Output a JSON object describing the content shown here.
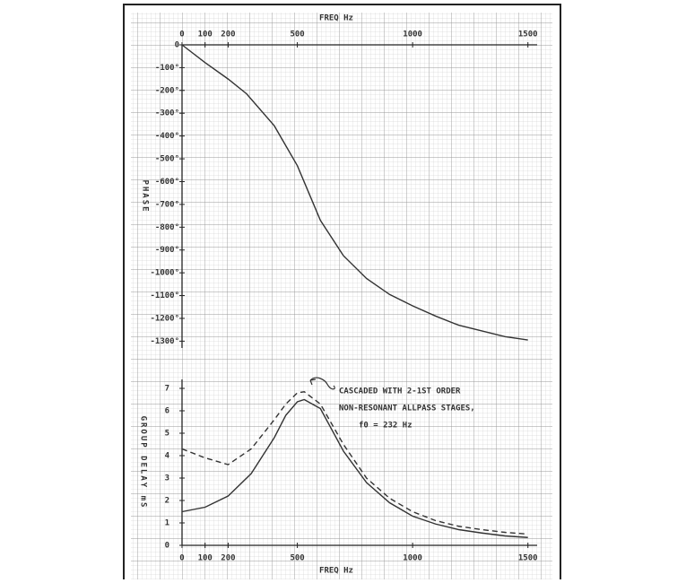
{
  "chart_data": [
    {
      "type": "line",
      "xlabel": "FREQ Hz",
      "ylabel": "PHASE",
      "x": [
        0,
        100,
        200,
        280,
        400,
        500,
        550,
        600,
        700,
        800,
        900,
        1000,
        1100,
        1200,
        1300,
        1400,
        1500
      ],
      "values": [
        0,
        -78,
        -150,
        -215,
        -355,
        -530,
        -650,
        -770,
        -925,
        -1025,
        -1095,
        -1145,
        -1190,
        -1230,
        -1255,
        -1280,
        -1295
      ],
      "color": "#333333",
      "xlim": [
        0,
        1540
      ],
      "xticks": [
        0,
        100,
        200,
        500,
        1000,
        1500
      ],
      "ylim": [
        -1330,
        0
      ],
      "yticks": [
        0,
        {
          "value": -100,
          "label": "-100°"
        },
        {
          "value": -200,
          "label": "-200°"
        },
        {
          "value": -300,
          "label": "-300°"
        },
        {
          "value": -400,
          "label": "-400°"
        },
        {
          "value": -500,
          "label": "-500°"
        },
        {
          "value": -600,
          "label": "-600°"
        },
        {
          "value": -700,
          "label": "-700°"
        },
        {
          "value": -800,
          "label": "-800°"
        },
        {
          "value": -900,
          "label": "-900°"
        },
        {
          "value": -1000,
          "label": "-1000°"
        },
        {
          "value": -1100,
          "label": "-1100°"
        },
        {
          "value": -1200,
          "label": "-1200°"
        },
        {
          "value": -1300,
          "label": "-1300°"
        }
      ]
    },
    {
      "type": "line",
      "xlabel": "FREQ Hz",
      "ylabel": "GROUP DELAY mS",
      "x": [
        0,
        100,
        200,
        300,
        400,
        450,
        500,
        530,
        600,
        700,
        800,
        900,
        1000,
        1100,
        1200,
        1300,
        1400,
        1500
      ],
      "series": [
        {
          "color": "#333333",
          "dashed": false,
          "values": [
            1.5,
            1.7,
            2.2,
            3.2,
            4.8,
            5.8,
            6.4,
            6.5,
            6.1,
            4.2,
            2.8,
            1.9,
            1.3,
            0.95,
            0.7,
            0.55,
            0.42,
            0.35
          ]
        },
        {
          "color": "#333333",
          "dashed": true,
          "values": [
            4.3,
            3.9,
            3.6,
            4.3,
            5.6,
            6.3,
            6.8,
            6.85,
            6.3,
            4.5,
            3.0,
            2.1,
            1.5,
            1.1,
            0.85,
            0.7,
            0.58,
            0.5
          ]
        }
      ],
      "annotations": [
        "CASCADED WITH 2-1ST ORDER",
        "NON-RESONANT ALLPASS STAGES,",
        "f0 = 232 Hz"
      ],
      "xlim": [
        0,
        1540
      ],
      "xticks": [
        0,
        100,
        200,
        500,
        1000,
        1500
      ],
      "ylim": [
        0,
        7.4
      ],
      "yticks": [
        0,
        1,
        2,
        3,
        4,
        5,
        6,
        7
      ]
    }
  ]
}
